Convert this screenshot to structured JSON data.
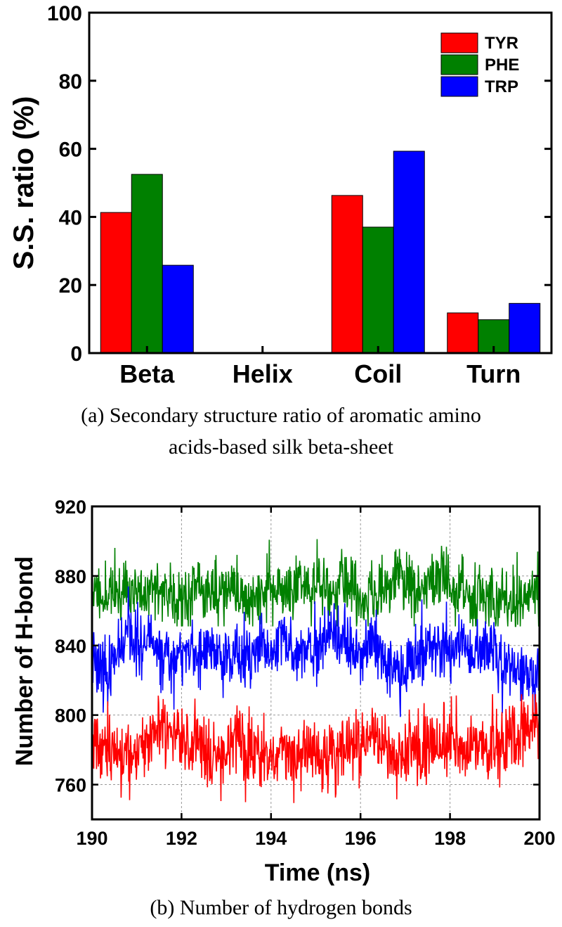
{
  "chart_data": [
    {
      "type": "bar",
      "title": "",
      "xlabel": "",
      "ylabel": "S.S. ratio (%)",
      "ylim": [
        0,
        100
      ],
      "yticks": [
        0,
        20,
        40,
        60,
        80,
        100
      ],
      "categories": [
        "Beta",
        "Helix",
        "Coil",
        "Turn"
      ],
      "series": [
        {
          "name": "TYR",
          "color": "#ff0000",
          "values": [
            41.3,
            0,
            46.3,
            11.8
          ]
        },
        {
          "name": "PHE",
          "color": "#008000",
          "values": [
            52.5,
            0,
            37.0,
            9.8
          ]
        },
        {
          "name": "TRP",
          "color": "#0000ff",
          "values": [
            25.8,
            0,
            59.3,
            14.6
          ]
        }
      ],
      "legend": "top-right",
      "grid": false,
      "caption_line1": "(a)  Secondary structure ratio of aromatic amino",
      "caption_line2": "acids-based silk beta-sheet"
    },
    {
      "type": "line",
      "title": "",
      "xlabel": "Time (ns)",
      "ylabel": "Number of H-bond",
      "xlim": [
        190,
        200
      ],
      "ylim": [
        740,
        920
      ],
      "xticks": [
        190,
        192,
        194,
        196,
        198,
        200
      ],
      "yticks": [
        760,
        800,
        840,
        880,
        920
      ],
      "grid": true,
      "series": [
        {
          "name": "series-green",
          "color": "#008000",
          "mean": 871,
          "spread": 9,
          "min": 851,
          "max": 909,
          "seed": 11
        },
        {
          "name": "series-blue",
          "color": "#0000ff",
          "mean": 833,
          "spread": 9,
          "min": 793,
          "max": 878,
          "seed": 23
        },
        {
          "name": "series-red",
          "color": "#ff0000",
          "mean": 782,
          "spread": 10,
          "min": 741,
          "max": 812,
          "seed": 37
        }
      ],
      "caption": "(b)  Number of hydrogen bonds"
    }
  ]
}
